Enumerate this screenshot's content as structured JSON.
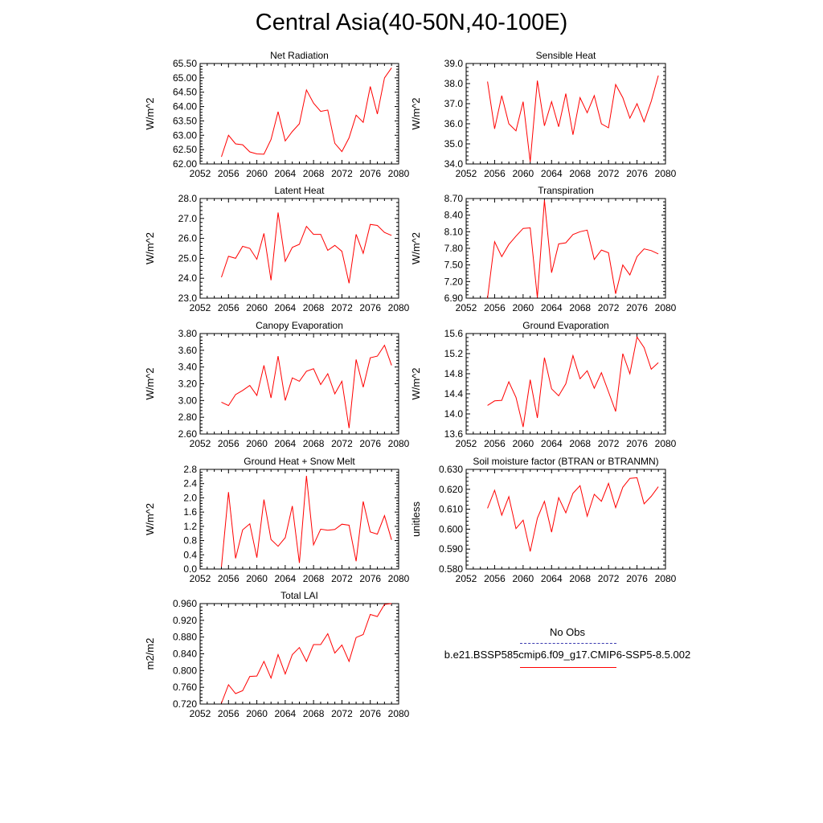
{
  "page": {
    "title": "Central Asia(40-50N,40-100E)"
  },
  "legend": {
    "entries": [
      {
        "label": "No Obs",
        "color": "#3b3bb0",
        "style": "dashed"
      },
      {
        "label": "b.e21.BSSP585cmip6.f09_g17.CMIP6-SSP5-8.5.002",
        "color": "#ff0000",
        "style": "solid"
      }
    ]
  },
  "chart_data": [
    {
      "id": "net-radiation",
      "type": "line",
      "title": "Net Radiation",
      "ylabel": "W/m^2",
      "xlim": [
        2052,
        2080
      ],
      "xticks": [
        2052,
        2056,
        2060,
        2064,
        2068,
        2072,
        2076,
        2080
      ],
      "xtick_labels": [
        "2052",
        "2056",
        "2060",
        "2064",
        "2068",
        "2072",
        "2076",
        "2080"
      ],
      "ylim": [
        62.0,
        65.5
      ],
      "yticks": [
        62.0,
        62.5,
        63.0,
        63.5,
        64.0,
        64.5,
        65.0,
        65.5
      ],
      "ytick_labels": [
        "62.00",
        "62.50",
        "63.00",
        "63.50",
        "64.00",
        "64.50",
        "65.00",
        "65.50"
      ],
      "series": [
        {
          "color": "#ff0000",
          "x": [
            2055,
            2056,
            2057,
            2058,
            2059,
            2060,
            2061,
            2062,
            2063,
            2064,
            2065,
            2066,
            2067,
            2068,
            2069,
            2070,
            2071,
            2072,
            2073,
            2074,
            2075,
            2076,
            2077,
            2078,
            2079
          ],
          "y": [
            62.25,
            63.0,
            62.7,
            62.67,
            62.42,
            62.35,
            62.34,
            62.85,
            63.82,
            62.8,
            63.13,
            63.4,
            64.58,
            64.12,
            63.83,
            63.88,
            62.72,
            62.43,
            62.91,
            63.7,
            63.45,
            64.7,
            63.74,
            65.0,
            65.35
          ]
        }
      ]
    },
    {
      "id": "sensible-heat",
      "type": "line",
      "title": "Sensible Heat",
      "ylabel": "W/m^2",
      "xlim": [
        2052,
        2080
      ],
      "xticks": [
        2052,
        2056,
        2060,
        2064,
        2068,
        2072,
        2076,
        2080
      ],
      "xtick_labels": [
        "2052",
        "2056",
        "2060",
        "2064",
        "2068",
        "2072",
        "2076",
        "2080"
      ],
      "ylim": [
        34.0,
        39.0
      ],
      "yticks": [
        34.0,
        35.0,
        36.0,
        37.0,
        38.0,
        39.0
      ],
      "ytick_labels": [
        "34.0",
        "35.0",
        "36.0",
        "37.0",
        "38.0",
        "39.0"
      ],
      "series": [
        {
          "color": "#ff0000",
          "x": [
            2055,
            2056,
            2057,
            2058,
            2059,
            2060,
            2061,
            2062,
            2063,
            2064,
            2065,
            2066,
            2067,
            2068,
            2069,
            2070,
            2071,
            2072,
            2073,
            2074,
            2075,
            2076,
            2077,
            2078,
            2079
          ],
          "y": [
            38.1,
            35.75,
            37.4,
            36.0,
            35.65,
            37.1,
            34.1,
            38.15,
            35.9,
            37.1,
            35.85,
            37.5,
            35.45,
            37.3,
            36.55,
            37.4,
            36.0,
            35.8,
            37.95,
            37.3,
            36.28,
            37.0,
            36.1,
            37.12,
            38.4
          ]
        }
      ]
    },
    {
      "id": "latent-heat",
      "type": "line",
      "title": "Latent Heat",
      "ylabel": "W/m^2",
      "xlim": [
        2052,
        2080
      ],
      "xticks": [
        2052,
        2056,
        2060,
        2064,
        2068,
        2072,
        2076,
        2080
      ],
      "xtick_labels": [
        "2052",
        "2056",
        "2060",
        "2064",
        "2068",
        "2072",
        "2076",
        "2080"
      ],
      "ylim": [
        23.0,
        28.0
      ],
      "yticks": [
        23.0,
        24.0,
        25.0,
        26.0,
        27.0,
        28.0
      ],
      "ytick_labels": [
        "23.0",
        "24.0",
        "25.0",
        "26.0",
        "27.0",
        "28.0"
      ],
      "series": [
        {
          "color": "#ff0000",
          "x": [
            2055,
            2056,
            2057,
            2058,
            2059,
            2060,
            2061,
            2062,
            2063,
            2064,
            2065,
            2066,
            2067,
            2068,
            2069,
            2070,
            2071,
            2072,
            2073,
            2074,
            2075,
            2076,
            2077,
            2078,
            2079
          ],
          "y": [
            24.05,
            25.1,
            25.0,
            25.6,
            25.5,
            24.95,
            26.25,
            23.9,
            27.3,
            24.85,
            25.55,
            25.7,
            26.6,
            26.2,
            26.2,
            25.4,
            25.65,
            25.35,
            23.75,
            26.2,
            25.25,
            26.7,
            26.65,
            26.3,
            26.15
          ]
        }
      ]
    },
    {
      "id": "transpiration",
      "type": "line",
      "title": "Transpiration",
      "ylabel": "W/m^2",
      "xlim": [
        2052,
        2080
      ],
      "xticks": [
        2052,
        2056,
        2060,
        2064,
        2068,
        2072,
        2076,
        2080
      ],
      "xtick_labels": [
        "2052",
        "2056",
        "2060",
        "2064",
        "2068",
        "2072",
        "2076",
        "2080"
      ],
      "ylim": [
        6.9,
        8.7
      ],
      "yticks": [
        6.9,
        7.2,
        7.5,
        7.8,
        8.1,
        8.4,
        8.7
      ],
      "ytick_labels": [
        "6.90",
        "7.20",
        "7.50",
        "7.80",
        "8.10",
        "8.40",
        "8.70"
      ],
      "series": [
        {
          "color": "#ff0000",
          "x": [
            2055,
            2056,
            2057,
            2058,
            2059,
            2060,
            2061,
            2062,
            2063,
            2064,
            2065,
            2066,
            2067,
            2068,
            2069,
            2070,
            2071,
            2072,
            2073,
            2074,
            2075,
            2076,
            2077,
            2078,
            2079
          ],
          "y": [
            6.9,
            7.92,
            7.65,
            7.87,
            8.02,
            8.16,
            8.17,
            6.91,
            8.67,
            7.36,
            7.88,
            7.9,
            8.05,
            8.1,
            8.13,
            7.6,
            7.77,
            7.72,
            6.98,
            7.5,
            7.32,
            7.65,
            7.79,
            7.76,
            7.7
          ]
        }
      ]
    },
    {
      "id": "canopy-evaporation",
      "type": "line",
      "title": "Canopy Evaporation",
      "ylabel": "W/m^2",
      "xlim": [
        2052,
        2080
      ],
      "xticks": [
        2052,
        2056,
        2060,
        2064,
        2068,
        2072,
        2076,
        2080
      ],
      "xtick_labels": [
        "2052",
        "2056",
        "2060",
        "2064",
        "2068",
        "2072",
        "2076",
        "2080"
      ],
      "ylim": [
        2.6,
        3.8
      ],
      "yticks": [
        2.6,
        2.8,
        3.0,
        3.2,
        3.4,
        3.6,
        3.8
      ],
      "ytick_labels": [
        "2.60",
        "2.80",
        "3.00",
        "3.20",
        "3.40",
        "3.60",
        "3.80"
      ],
      "series": [
        {
          "color": "#ff0000",
          "x": [
            2055,
            2056,
            2057,
            2058,
            2059,
            2060,
            2061,
            2062,
            2063,
            2064,
            2065,
            2066,
            2067,
            2068,
            2069,
            2070,
            2071,
            2072,
            2073,
            2074,
            2075,
            2076,
            2077,
            2078,
            2079
          ],
          "y": [
            2.98,
            2.94,
            3.07,
            3.12,
            3.18,
            3.06,
            3.42,
            3.03,
            3.53,
            3.0,
            3.27,
            3.23,
            3.35,
            3.38,
            3.19,
            3.32,
            3.08,
            3.23,
            2.67,
            3.49,
            3.16,
            3.51,
            3.53,
            3.66,
            3.42
          ]
        }
      ]
    },
    {
      "id": "ground-evaporation",
      "type": "line",
      "title": "Ground Evaporation",
      "ylabel": "W/m^2",
      "xlim": [
        2052,
        2080
      ],
      "xticks": [
        2052,
        2056,
        2060,
        2064,
        2068,
        2072,
        2076,
        2080
      ],
      "xtick_labels": [
        "2052",
        "2056",
        "2060",
        "2064",
        "2068",
        "2072",
        "2076",
        "2080"
      ],
      "ylim": [
        13.6,
        15.6
      ],
      "yticks": [
        13.6,
        14.0,
        14.4,
        14.8,
        15.2,
        15.6
      ],
      "ytick_labels": [
        "13.6",
        "14.0",
        "14.4",
        "14.8",
        "15.2",
        "15.6"
      ],
      "series": [
        {
          "color": "#ff0000",
          "x": [
            2055,
            2056,
            2057,
            2058,
            2059,
            2060,
            2061,
            2062,
            2063,
            2064,
            2065,
            2066,
            2067,
            2068,
            2069,
            2070,
            2071,
            2072,
            2073,
            2074,
            2075,
            2076,
            2077,
            2078,
            2079
          ],
          "y": [
            14.17,
            14.26,
            14.27,
            14.64,
            14.33,
            13.74,
            14.68,
            13.92,
            15.12,
            14.5,
            14.36,
            14.6,
            15.16,
            14.7,
            14.86,
            14.51,
            14.82,
            14.44,
            14.05,
            15.2,
            14.8,
            15.53,
            15.32,
            14.89,
            15.02
          ]
        }
      ]
    },
    {
      "id": "ground-heat-snow-melt",
      "type": "line",
      "title": "Ground Heat + Snow Melt",
      "ylabel": "W/m^2",
      "xlim": [
        2052,
        2080
      ],
      "xticks": [
        2052,
        2056,
        2060,
        2064,
        2068,
        2072,
        2076,
        2080
      ],
      "xtick_labels": [
        "2052",
        "2056",
        "2060",
        "2064",
        "2068",
        "2072",
        "2076",
        "2080"
      ],
      "ylim": [
        0.0,
        2.8
      ],
      "yticks": [
        0.0,
        0.4,
        0.8,
        1.2,
        1.6,
        2.0,
        2.4,
        2.8
      ],
      "ytick_labels": [
        "0.0",
        "0.4",
        "0.8",
        "1.2",
        "1.6",
        "2.0",
        "2.4",
        "2.8"
      ],
      "series": [
        {
          "color": "#ff0000",
          "x": [
            2055,
            2056,
            2057,
            2058,
            2059,
            2060,
            2061,
            2062,
            2063,
            2064,
            2065,
            2066,
            2067,
            2068,
            2069,
            2070,
            2071,
            2072,
            2073,
            2074,
            2075,
            2076,
            2077,
            2078,
            2079
          ],
          "y": [
            0.06,
            2.16,
            0.3,
            1.1,
            1.27,
            0.32,
            1.95,
            0.83,
            0.64,
            0.88,
            1.77,
            0.17,
            2.62,
            0.68,
            1.12,
            1.09,
            1.11,
            1.26,
            1.23,
            0.22,
            1.9,
            1.04,
            0.98,
            1.5,
            0.82
          ]
        }
      ]
    },
    {
      "id": "soil-moisture-factor",
      "type": "line",
      "title": "Soil moisture factor (BTRAN or BTRANMN)",
      "ylabel": "unitless",
      "xlim": [
        2052,
        2080
      ],
      "xticks": [
        2052,
        2056,
        2060,
        2064,
        2068,
        2072,
        2076,
        2080
      ],
      "xtick_labels": [
        "2052",
        "2056",
        "2060",
        "2064",
        "2068",
        "2072",
        "2076",
        "2080"
      ],
      "ylim": [
        0.58,
        0.63
      ],
      "yticks": [
        0.58,
        0.59,
        0.6,
        0.61,
        0.62,
        0.63
      ],
      "ytick_labels": [
        "0.580",
        "0.590",
        "0.600",
        "0.610",
        "0.620",
        "0.630"
      ],
      "series": [
        {
          "color": "#ff0000",
          "x": [
            2055,
            2056,
            2057,
            2058,
            2059,
            2060,
            2061,
            2062,
            2063,
            2064,
            2065,
            2066,
            2067,
            2068,
            2069,
            2070,
            2071,
            2072,
            2073,
            2074,
            2075,
            2076,
            2077,
            2078,
            2079
          ],
          "y": [
            0.6105,
            0.6195,
            0.607,
            0.6163,
            0.6003,
            0.6045,
            0.5888,
            0.6055,
            0.614,
            0.5985,
            0.6158,
            0.6082,
            0.618,
            0.6218,
            0.6065,
            0.6175,
            0.614,
            0.623,
            0.6108,
            0.621,
            0.6255,
            0.6258,
            0.6127,
            0.6165,
            0.6213
          ]
        }
      ]
    },
    {
      "id": "total-lai",
      "type": "line",
      "title": "Total LAI",
      "ylabel": "m2/m2",
      "xlim": [
        2052,
        2080
      ],
      "xticks": [
        2052,
        2056,
        2060,
        2064,
        2068,
        2072,
        2076,
        2080
      ],
      "xtick_labels": [
        "2052",
        "2056",
        "2060",
        "2064",
        "2068",
        "2072",
        "2076",
        "2080"
      ],
      "ylim": [
        0.72,
        0.96
      ],
      "yticks": [
        0.72,
        0.76,
        0.8,
        0.84,
        0.88,
        0.92,
        0.96
      ],
      "ytick_labels": [
        "0.720",
        "0.760",
        "0.800",
        "0.840",
        "0.880",
        "0.920",
        "0.960"
      ],
      "series": [
        {
          "color": "#ff0000",
          "x": [
            2055,
            2056,
            2057,
            2058,
            2059,
            2060,
            2061,
            2062,
            2063,
            2064,
            2065,
            2066,
            2067,
            2068,
            2069,
            2070,
            2071,
            2072,
            2073,
            2074,
            2075,
            2076,
            2077,
            2078,
            2079
          ],
          "y": [
            0.722,
            0.766,
            0.745,
            0.752,
            0.786,
            0.787,
            0.822,
            0.782,
            0.838,
            0.792,
            0.838,
            0.855,
            0.822,
            0.862,
            0.862,
            0.888,
            0.842,
            0.861,
            0.822,
            0.879,
            0.886,
            0.934,
            0.929,
            0.958,
            0.96
          ]
        }
      ]
    }
  ]
}
